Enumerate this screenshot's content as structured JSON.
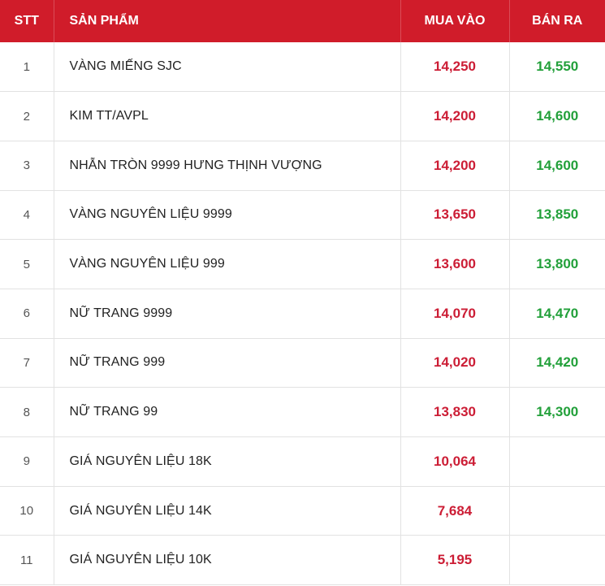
{
  "header": {
    "stt": "STT",
    "product": "SẢN PHẨM",
    "buy": "MUA VÀO",
    "sell": "BÁN RA"
  },
  "colors": {
    "header_bg": "#d01c2a",
    "buy_text": "#cc1d35",
    "sell_text": "#22a03a"
  },
  "rows": [
    {
      "stt": "1",
      "product": "VÀNG MIẾNG SJC",
      "buy": "14,250",
      "sell": "14,550"
    },
    {
      "stt": "2",
      "product": "KIM TT/AVPL",
      "buy": "14,200",
      "sell": "14,600"
    },
    {
      "stt": "3",
      "product": "NHẪN TRÒN 9999 HƯNG THỊNH VƯỢNG",
      "buy": "14,200",
      "sell": "14,600"
    },
    {
      "stt": "4",
      "product": "VÀNG NGUYÊN LIỆU 9999",
      "buy": "13,650",
      "sell": "13,850"
    },
    {
      "stt": "5",
      "product": "VÀNG NGUYÊN LIỆU 999",
      "buy": "13,600",
      "sell": "13,800"
    },
    {
      "stt": "6",
      "product": "NỮ TRANG 9999",
      "buy": "14,070",
      "sell": "14,470"
    },
    {
      "stt": "7",
      "product": "NỮ TRANG 999",
      "buy": "14,020",
      "sell": "14,420"
    },
    {
      "stt": "8",
      "product": "NỮ TRANG 99",
      "buy": "13,830",
      "sell": "14,300"
    },
    {
      "stt": "9",
      "product": "GIÁ NGUYÊN LIỆU 18K",
      "buy": "10,064",
      "sell": ""
    },
    {
      "stt": "10",
      "product": "GIÁ NGUYÊN LIỆU 14K",
      "buy": "7,684",
      "sell": ""
    },
    {
      "stt": "11",
      "product": "GIÁ NGUYÊN LIỆU 10K",
      "buy": "5,195",
      "sell": ""
    }
  ]
}
